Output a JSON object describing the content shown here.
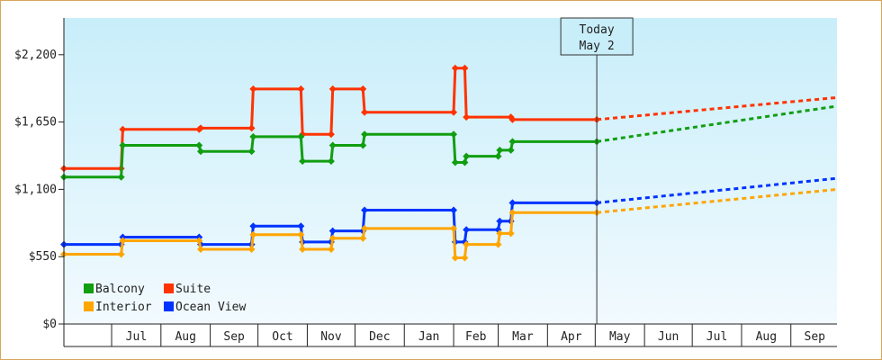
{
  "chart_data": {
    "type": "line",
    "title": "",
    "xlabel": "",
    "ylabel": "",
    "ylim": [
      0,
      2500
    ],
    "y_ticks": [
      {
        "value": 0,
        "label": "$0"
      },
      {
        "value": 550,
        "label": "$550"
      },
      {
        "value": 1100,
        "label": "$1,100"
      },
      {
        "value": 1650,
        "label": "$1,650"
      },
      {
        "value": 2200,
        "label": "$2,200"
      }
    ],
    "x_months": [
      "Jul",
      "Aug",
      "Sep",
      "Oct",
      "Nov",
      "Dec",
      "Jan",
      "Feb",
      "Mar",
      "Apr",
      "May",
      "Jun",
      "Jul",
      "Aug",
      "Sep"
    ],
    "month_days": [
      30,
      31,
      31,
      30,
      31,
      30,
      31,
      31,
      28,
      31,
      30,
      31,
      30,
      31,
      31,
      30
    ],
    "x_start": "2020-06-01",
    "x_end": "2021-09-30",
    "today": {
      "line1": "Today",
      "line2": "May 2",
      "date": "2021-05-02"
    },
    "legend": [
      {
        "name": "Balcony",
        "color": "#119e11"
      },
      {
        "name": "Suite",
        "color": "#ff3300"
      },
      {
        "name": "Interior",
        "color": "#ffa500"
      },
      {
        "name": "Ocean View",
        "color": "#0033ff"
      }
    ],
    "grid": false,
    "background_gradient": [
      "#c8eefa",
      "#f2fafe"
    ],
    "series": [
      {
        "name": "Suite",
        "color": "#ff3300",
        "points": [
          [
            "2020-06-01",
            1270
          ],
          [
            "2020-07-07",
            1270
          ],
          [
            "2020-07-08",
            1590
          ],
          [
            "2020-08-25",
            1590
          ],
          [
            "2020-08-26",
            1600
          ],
          [
            "2020-09-27",
            1600
          ],
          [
            "2020-09-28",
            1920
          ],
          [
            "2020-10-28",
            1920
          ],
          [
            "2020-10-29",
            1550
          ],
          [
            "2020-11-16",
            1550
          ],
          [
            "2020-11-17",
            1920
          ],
          [
            "2020-12-06",
            1920
          ],
          [
            "2020-12-07",
            1730
          ],
          [
            "2021-02-01",
            1730
          ],
          [
            "2021-02-02",
            2090
          ],
          [
            "2021-02-08",
            2090
          ],
          [
            "2021-02-09",
            1690
          ],
          [
            "2021-03-09",
            1690
          ],
          [
            "2021-03-10",
            1670
          ],
          [
            "2021-05-02",
            1670
          ]
        ],
        "forecast": [
          [
            "2021-05-02",
            1670
          ],
          [
            "2021-09-30",
            1850
          ]
        ]
      },
      {
        "name": "Balcony",
        "color": "#119e11",
        "points": [
          [
            "2020-06-01",
            1200
          ],
          [
            "2020-07-07",
            1200
          ],
          [
            "2020-07-08",
            1460
          ],
          [
            "2020-08-25",
            1460
          ],
          [
            "2020-08-26",
            1410
          ],
          [
            "2020-09-27",
            1410
          ],
          [
            "2020-09-28",
            1530
          ],
          [
            "2020-10-28",
            1530
          ],
          [
            "2020-10-29",
            1330
          ],
          [
            "2020-11-16",
            1330
          ],
          [
            "2020-11-17",
            1460
          ],
          [
            "2020-12-06",
            1460
          ],
          [
            "2020-12-07",
            1550
          ],
          [
            "2021-02-01",
            1550
          ],
          [
            "2021-02-02",
            1320
          ],
          [
            "2021-02-08",
            1320
          ],
          [
            "2021-02-09",
            1370
          ],
          [
            "2021-03-01",
            1370
          ],
          [
            "2021-03-02",
            1420
          ],
          [
            "2021-03-09",
            1420
          ],
          [
            "2021-03-10",
            1490
          ],
          [
            "2021-05-02",
            1490
          ]
        ],
        "forecast": [
          [
            "2021-05-02",
            1490
          ],
          [
            "2021-09-30",
            1780
          ]
        ]
      },
      {
        "name": "Ocean View",
        "color": "#0033ff",
        "points": [
          [
            "2020-06-01",
            650
          ],
          [
            "2020-07-07",
            650
          ],
          [
            "2020-07-08",
            710
          ],
          [
            "2020-08-25",
            710
          ],
          [
            "2020-08-26",
            650
          ],
          [
            "2020-09-27",
            650
          ],
          [
            "2020-09-28",
            800
          ],
          [
            "2020-10-28",
            800
          ],
          [
            "2020-10-29",
            670
          ],
          [
            "2020-11-16",
            670
          ],
          [
            "2020-11-17",
            760
          ],
          [
            "2020-12-06",
            760
          ],
          [
            "2020-12-07",
            930
          ],
          [
            "2021-02-01",
            930
          ],
          [
            "2021-02-02",
            670
          ],
          [
            "2021-02-08",
            670
          ],
          [
            "2021-02-09",
            770
          ],
          [
            "2021-03-01",
            770
          ],
          [
            "2021-03-02",
            840
          ],
          [
            "2021-03-09",
            840
          ],
          [
            "2021-03-10",
            990
          ],
          [
            "2021-05-02",
            990
          ]
        ],
        "forecast": [
          [
            "2021-05-02",
            990
          ],
          [
            "2021-09-30",
            1190
          ]
        ]
      },
      {
        "name": "Interior",
        "color": "#ffa500",
        "points": [
          [
            "2020-06-01",
            570
          ],
          [
            "2020-07-07",
            570
          ],
          [
            "2020-07-08",
            680
          ],
          [
            "2020-08-25",
            680
          ],
          [
            "2020-08-26",
            610
          ],
          [
            "2020-09-27",
            610
          ],
          [
            "2020-09-28",
            730
          ],
          [
            "2020-10-28",
            730
          ],
          [
            "2020-10-29",
            610
          ],
          [
            "2020-11-16",
            610
          ],
          [
            "2020-11-17",
            700
          ],
          [
            "2020-12-06",
            700
          ],
          [
            "2020-12-07",
            780
          ],
          [
            "2021-02-01",
            780
          ],
          [
            "2021-02-02",
            540
          ],
          [
            "2021-02-08",
            540
          ],
          [
            "2021-02-09",
            650
          ],
          [
            "2021-03-01",
            650
          ],
          [
            "2021-03-02",
            740
          ],
          [
            "2021-03-09",
            740
          ],
          [
            "2021-03-10",
            910
          ],
          [
            "2021-05-02",
            910
          ]
        ],
        "forecast": [
          [
            "2021-05-02",
            910
          ],
          [
            "2021-09-30",
            1100
          ]
        ]
      }
    ]
  }
}
